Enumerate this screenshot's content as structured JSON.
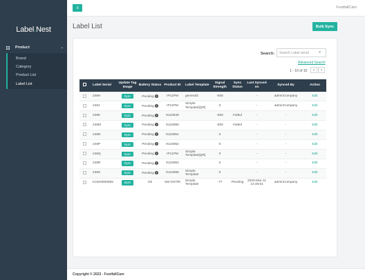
{
  "sidebar": {
    "logo_main": "Label",
    "logo_dot": ".",
    "logo_tail": "Nest",
    "product": {
      "label": "Product",
      "icon": "grid-icon"
    },
    "items": [
      {
        "label": "Brand"
      },
      {
        "label": "Category"
      },
      {
        "label": "Product List"
      },
      {
        "label": "Label List"
      }
    ]
  },
  "topbar": {
    "menu_icon": "hamburger-icon",
    "brand": "FootfallCam"
  },
  "page": {
    "title": "Label List",
    "bulk_sync": "Bulk Sync"
  },
  "search": {
    "label": "Search:",
    "placeholder": "Search Label serial",
    "advanced": "Advanced Search"
  },
  "pagination": {
    "text": "1 - 10 of 10",
    "prev": "‹",
    "next": "›"
  },
  "table": {
    "headers": [
      "Label Serial",
      "Update Tag Image",
      "Battery Status",
      "Product ID",
      "Label Template",
      "Signal Strength",
      "Sync Status",
      "Last Synced on",
      "Synced By",
      "Action"
    ],
    "rows": [
      {
        "serial": "248H",
        "sync": "Sync",
        "battery": "Pending",
        "product": "IP11PM",
        "template": "general3",
        "signal": "-500",
        "status": "",
        "last": "-",
        "by": "adminCompany",
        "action": "Edit"
      },
      {
        "serial": "248J",
        "sync": "Sync",
        "battery": "Pending",
        "product": "IP11PM",
        "template": "Simple Template[QR]",
        "signal": "0",
        "status": "",
        "last": "-",
        "by": "adminCompany",
        "action": "Edit"
      },
      {
        "serial": "248K",
        "sync": "Sync",
        "battery": "Pending",
        "product": "9123849",
        "template": "",
        "signal": "-500",
        "status": "Failed",
        "last": "-",
        "by": "-",
        "action": "Edit"
      },
      {
        "serial": "248M",
        "sync": "Sync",
        "battery": "Pending",
        "product": "9123850",
        "template": "",
        "signal": "-500",
        "status": "Failed",
        "last": "-",
        "by": "-",
        "action": "Edit"
      },
      {
        "serial": "248N",
        "sync": "Sync",
        "battery": "Pending",
        "product": "9123851",
        "template": "",
        "signal": "0",
        "status": "",
        "last": "-",
        "by": "-",
        "action": "Edit"
      },
      {
        "serial": "248P",
        "sync": "Sync",
        "battery": "Pending",
        "product": "9123852",
        "template": "",
        "signal": "0",
        "status": "",
        "last": "-",
        "by": "-",
        "action": "Edit"
      },
      {
        "serial": "248Q",
        "sync": "Sync",
        "battery": "Pending",
        "product": "IP11PM",
        "template": "Simple Template[QR]",
        "signal": "0",
        "status": "",
        "last": "-",
        "by": "-",
        "action": "Edit"
      },
      {
        "serial": "248R",
        "sync": "Sync",
        "battery": "Pending",
        "product": "9123854",
        "template": "",
        "signal": "0",
        "status": "",
        "last": "-",
        "by": "-",
        "action": "Edit"
      },
      {
        "serial": "248S",
        "sync": "Sync",
        "battery": "Pending",
        "product": "9123855",
        "template": "Simple Template",
        "signal": "0",
        "status": "",
        "last": "-",
        "by": "-",
        "action": "Edit"
      },
      {
        "serial": "K2403000555",
        "sync": "Sync",
        "battery": "Ok",
        "product": "SM-G970h",
        "template": "Simple Template",
        "signal": "-77",
        "status": "Pending",
        "last": "2020-Mar-11 14:48:51",
        "by": "adminCompany",
        "action": "Edit"
      }
    ]
  },
  "footer": {
    "copyright": "Copyright © 2023 - FootfallCam"
  },
  "colors": {
    "accent": "#22b3a0",
    "sidebar": "#2f3e4c",
    "table_header": "#2f3e4c"
  }
}
